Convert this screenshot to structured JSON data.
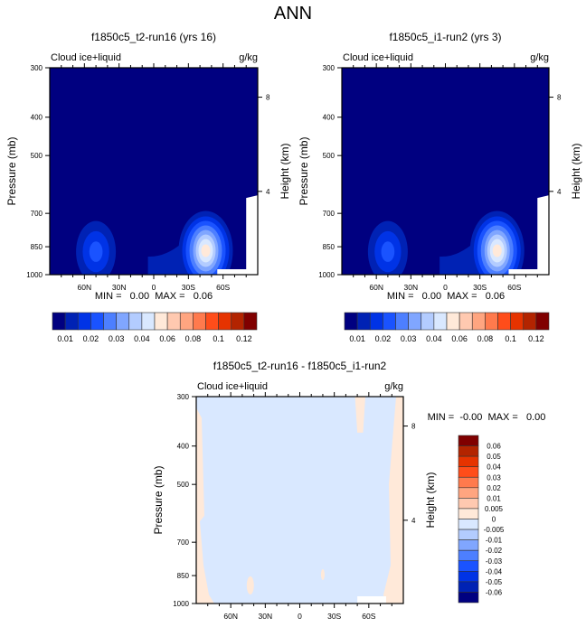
{
  "page_title": "ANN",
  "chart_data": [
    {
      "type": "heatmap",
      "id": "panel-t2",
      "title": "f1850c5_t2-run16 (yrs 16)",
      "left_label": "Cloud ice+liquid",
      "right_label": "g/kg",
      "ylabel": "Pressure (mb)",
      "ylabel_right": "Height (km)",
      "xlabel": "",
      "x_ticks": [
        "60N",
        "30N",
        "0",
        "30S",
        "60S"
      ],
      "x_tick_values": [
        60,
        30,
        0,
        -30,
        -60
      ],
      "xlim": [
        90,
        -90
      ],
      "y_ticks": [
        "300",
        "400",
        "500",
        "700",
        "850",
        "1000"
      ],
      "y_tick_values": [
        300,
        400,
        500,
        700,
        850,
        1000
      ],
      "ylim": [
        300,
        1000
      ],
      "y_scale": "log",
      "height_ticks": [
        "8",
        "4"
      ],
      "height_tick_pressures": [
        356,
        616
      ],
      "stats": "MIN =   0.00  MAX =   0.06",
      "min": 0.0,
      "max": 0.06,
      "features": [
        {
          "name": "nh-midlat-cloud",
          "center_lat": 50,
          "center_p": 880,
          "peak": 0.03
        },
        {
          "name": "tropical-low-cloud",
          "center_lat": -5,
          "center_p": 920,
          "peak": 0.015
        },
        {
          "name": "sh-midlat-cloud",
          "center_lat": -45,
          "center_p": 870,
          "peak": 0.06
        }
      ],
      "colorbar": {
        "orientation": "horizontal",
        "labels": [
          "0.01",
          "0.02",
          "0.03",
          "0.04",
          "0.06",
          "0.08",
          "0.1",
          "0.12"
        ],
        "colors": [
          "#000080",
          "#0022b4",
          "#0033e6",
          "#1a53ff",
          "#4d7fff",
          "#80a6ff",
          "#b3ccff",
          "#d9e8ff",
          "#ffe9d9",
          "#ffc9b0",
          "#ffa580",
          "#ff7a4d",
          "#ff4d1a",
          "#e63300",
          "#b32400",
          "#800000"
        ]
      }
    },
    {
      "type": "heatmap",
      "id": "panel-i1",
      "title": "f1850c5_i1-run2 (yrs 3)",
      "left_label": "Cloud ice+liquid",
      "right_label": "g/kg",
      "ylabel": "Pressure (mb)",
      "ylabel_right": "Height (km)",
      "xlabel": "",
      "x_ticks": [
        "60N",
        "30N",
        "0",
        "30S",
        "60S"
      ],
      "x_tick_values": [
        60,
        30,
        0,
        -30,
        -60
      ],
      "xlim": [
        90,
        -90
      ],
      "y_ticks": [
        "300",
        "400",
        "500",
        "700",
        "850",
        "1000"
      ],
      "y_tick_values": [
        300,
        400,
        500,
        700,
        850,
        1000
      ],
      "ylim": [
        300,
        1000
      ],
      "y_scale": "log",
      "height_ticks": [
        "8",
        "4"
      ],
      "height_tick_pressures": [
        356,
        616
      ],
      "stats": "MIN =   0.00  MAX =   0.06",
      "min": 0.0,
      "max": 0.06,
      "features": [
        {
          "name": "nh-midlat-cloud",
          "center_lat": 50,
          "center_p": 880,
          "peak": 0.03
        },
        {
          "name": "tropical-low-cloud",
          "center_lat": -5,
          "center_p": 920,
          "peak": 0.015
        },
        {
          "name": "sh-midlat-cloud",
          "center_lat": -45,
          "center_p": 870,
          "peak": 0.06
        }
      ],
      "colorbar": {
        "orientation": "horizontal",
        "labels": [
          "0.01",
          "0.02",
          "0.03",
          "0.04",
          "0.06",
          "0.08",
          "0.1",
          "0.12"
        ],
        "colors": [
          "#000080",
          "#0022b4",
          "#0033e6",
          "#1a53ff",
          "#4d7fff",
          "#80a6ff",
          "#b3ccff",
          "#d9e8ff",
          "#ffe9d9",
          "#ffc9b0",
          "#ffa580",
          "#ff7a4d",
          "#ff4d1a",
          "#e63300",
          "#b32400",
          "#800000"
        ]
      }
    },
    {
      "type": "heatmap",
      "id": "panel-diff",
      "title": "f1850c5_t2-run16 - f1850c5_i1-run2",
      "left_label": "Cloud ice+liquid",
      "right_label": "g/kg",
      "ylabel": "Pressure (mb)",
      "ylabel_right": "Height (km)",
      "xlabel": "",
      "x_ticks": [
        "60N",
        "30N",
        "0",
        "30S",
        "60S"
      ],
      "x_tick_values": [
        60,
        30,
        0,
        -30,
        -60
      ],
      "xlim": [
        90,
        -90
      ],
      "y_ticks": [
        "300",
        "400",
        "500",
        "700",
        "850",
        "1000"
      ],
      "y_tick_values": [
        300,
        400,
        500,
        700,
        850,
        1000
      ],
      "ylim": [
        300,
        1000
      ],
      "y_scale": "log",
      "height_ticks": [
        "8",
        "4"
      ],
      "height_tick_pressures": [
        356,
        616
      ],
      "stats": "MIN =  -0.00  MAX =   0.00",
      "min": -0.0,
      "max": 0.0,
      "colorbar": {
        "orientation": "vertical",
        "labels": [
          "0.06",
          "0.05",
          "0.04",
          "0.03",
          "0.02",
          "0.01",
          "0.005",
          "0",
          "-0.005",
          "-0.01",
          "-0.02",
          "-0.03",
          "-0.04",
          "-0.05",
          "-0.06"
        ],
        "colors": [
          "#800000",
          "#b32400",
          "#e63300",
          "#ff4d1a",
          "#ff7a4d",
          "#ffa580",
          "#ffc9b0",
          "#ffe9d9",
          "#d9e8ff",
          "#b3ccff",
          "#80a6ff",
          "#4d7fff",
          "#1a53ff",
          "#0033e6",
          "#0022b4",
          "#000080"
        ]
      }
    }
  ]
}
